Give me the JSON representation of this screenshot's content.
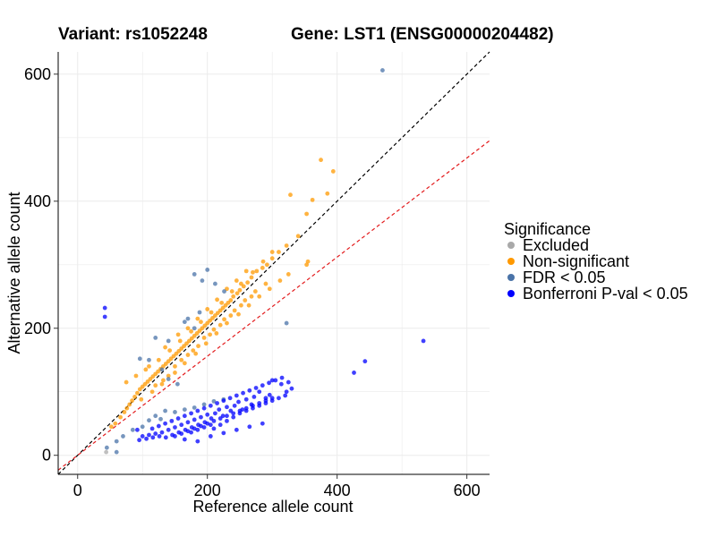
{
  "header": {
    "variant": "Variant: rs1052248",
    "gene": "Gene: LST1 (ENSG00000204482)"
  },
  "legend": {
    "title": "Significance",
    "items": [
      {
        "label": "Excluded",
        "color": "#a9a9a9"
      },
      {
        "label": "Non-significant",
        "color": "#ff9900"
      },
      {
        "label": "FDR < 0.05",
        "color": "#4a73a8"
      },
      {
        "label": "Bonferroni P-val < 0.05",
        "color": "#0000ff"
      }
    ]
  },
  "chart_data": {
    "type": "scatter",
    "title": "",
    "xlabel": "Reference allele count",
    "ylabel": "Alternative allele count",
    "xlim": [
      -30,
      635
    ],
    "ylim": [
      -30,
      635
    ],
    "xticks": [
      0,
      200,
      400,
      600
    ],
    "yticks": [
      0,
      200,
      400,
      600
    ],
    "grid": true,
    "legend_position": "right",
    "reference_lines": [
      {
        "name": "y = x",
        "slope": 1.0,
        "intercept": 0,
        "color": "#000000",
        "style": "dashed"
      },
      {
        "name": "fit",
        "slope": 0.78,
        "intercept": 0,
        "color": "#e31a1c",
        "style": "dashed"
      }
    ],
    "series": [
      {
        "name": "Excluded",
        "color": "#a9a9a9",
        "points": [
          [
            44,
            5
          ]
        ]
      },
      {
        "name": "Non-significant",
        "color": "#ff9900",
        "points": [
          [
            375,
            465
          ],
          [
            394,
            447
          ],
          [
            385,
            412
          ],
          [
            328,
            410
          ],
          [
            362,
            402
          ],
          [
            353,
            380
          ],
          [
            353,
            300
          ],
          [
            355,
            305
          ],
          [
            340,
            345
          ],
          [
            322,
            330
          ],
          [
            310,
            320
          ],
          [
            300,
            310
          ],
          [
            292,
            300
          ],
          [
            285,
            295
          ],
          [
            276,
            290
          ],
          [
            268,
            280
          ],
          [
            262,
            272
          ],
          [
            256,
            266
          ],
          [
            250,
            260
          ],
          [
            246,
            255
          ],
          [
            240,
            250
          ],
          [
            236,
            244
          ],
          [
            232,
            240
          ],
          [
            228,
            236
          ],
          [
            224,
            232
          ],
          [
            220,
            228
          ],
          [
            216,
            224
          ],
          [
            212,
            220
          ],
          [
            208,
            216
          ],
          [
            204,
            212
          ],
          [
            200,
            208
          ],
          [
            196,
            204
          ],
          [
            192,
            200
          ],
          [
            188,
            196
          ],
          [
            184,
            192
          ],
          [
            180,
            188
          ],
          [
            176,
            184
          ],
          [
            172,
            180
          ],
          [
            168,
            176
          ],
          [
            164,
            172
          ],
          [
            160,
            168
          ],
          [
            156,
            164
          ],
          [
            152,
            160
          ],
          [
            148,
            156
          ],
          [
            144,
            152
          ],
          [
            140,
            148
          ],
          [
            136,
            144
          ],
          [
            132,
            140
          ],
          [
            128,
            136
          ],
          [
            124,
            132
          ],
          [
            120,
            128
          ],
          [
            116,
            124
          ],
          [
            112,
            120
          ],
          [
            108,
            116
          ],
          [
            104,
            112
          ],
          [
            100,
            108
          ],
          [
            96,
            104
          ],
          [
            92,
            98
          ],
          [
            88,
            92
          ],
          [
            84,
            86
          ],
          [
            80,
            80
          ],
          [
            76,
            74
          ],
          [
            72,
            68
          ],
          [
            66,
            60
          ],
          [
            58,
            50
          ],
          [
            52,
            45
          ],
          [
            75,
            115
          ],
          [
            90,
            125
          ],
          [
            105,
            135
          ],
          [
            125,
            150
          ],
          [
            142,
            165
          ],
          [
            158,
            180
          ],
          [
            175,
            195
          ],
          [
            190,
            210
          ],
          [
            206,
            225
          ],
          [
            222,
            240
          ],
          [
            238,
            258
          ],
          [
            252,
            270
          ],
          [
            270,
            288
          ],
          [
            286,
            305
          ],
          [
            300,
            320
          ],
          [
            98,
            88
          ],
          [
            115,
            100
          ],
          [
            130,
            112
          ],
          [
            150,
            130
          ],
          [
            165,
            145
          ],
          [
            182,
            160
          ],
          [
            198,
            176
          ],
          [
            214,
            192
          ],
          [
            230,
            208
          ],
          [
            248,
            222
          ],
          [
            264,
            236
          ],
          [
            280,
            250
          ],
          [
            296,
            262
          ],
          [
            312,
            275
          ],
          [
            325,
            285
          ],
          [
            110,
            140
          ],
          [
            135,
            170
          ],
          [
            155,
            190
          ],
          [
            170,
            200
          ],
          [
            185,
            215
          ],
          [
            200,
            230
          ],
          [
            215,
            245
          ],
          [
            230,
            262
          ],
          [
            245,
            275
          ],
          [
            260,
            290
          ],
          [
            140,
            125
          ],
          [
            160,
            150
          ],
          [
            178,
            165
          ],
          [
            195,
            185
          ],
          [
            210,
            198
          ],
          [
            226,
            214
          ],
          [
            242,
            228
          ],
          [
            258,
            244
          ],
          [
            274,
            258
          ],
          [
            290,
            270
          ],
          [
            120,
            110
          ],
          [
            132,
            118
          ],
          [
            150,
            140
          ],
          [
            170,
            158
          ],
          [
            186,
            172
          ],
          [
            204,
            190
          ],
          [
            220,
            205
          ],
          [
            236,
            220
          ],
          [
            252,
            236
          ],
          [
            268,
            250
          ]
        ]
      },
      {
        "name": "FDR < 0.05",
        "color": "#4a73a8",
        "points": [
          [
            470,
            606
          ],
          [
            322,
            208
          ],
          [
            200,
            292
          ],
          [
            180,
            285
          ],
          [
            192,
            275
          ],
          [
            212,
            270
          ],
          [
            226,
            258
          ],
          [
            170,
            215
          ],
          [
            180,
            200
          ],
          [
            165,
            210
          ],
          [
            188,
            225
          ],
          [
            140,
            180
          ],
          [
            120,
            185
          ],
          [
            96,
            152
          ],
          [
            110,
            150
          ],
          [
            130,
            135
          ],
          [
            140,
            120
          ],
          [
            154,
            112
          ],
          [
            128,
            57
          ],
          [
            110,
            55
          ],
          [
            100,
            45
          ],
          [
            85,
            40
          ],
          [
            70,
            30
          ],
          [
            60,
            22
          ],
          [
            45,
            12
          ],
          [
            60,
            5
          ],
          [
            120,
            62
          ],
          [
            135,
            70
          ],
          [
            150,
            68
          ],
          [
            165,
            72
          ],
          [
            180,
            75
          ],
          [
            195,
            80
          ],
          [
            210,
            85
          ],
          [
            225,
            88
          ]
        ]
      },
      {
        "name": "Bonferroni P-val < 0.05",
        "color": "#0000ff",
        "points": [
          [
            42,
            232
          ],
          [
            42,
            218
          ],
          [
            533,
            180
          ],
          [
            443,
            148
          ],
          [
            426,
            130
          ],
          [
            330,
            105
          ],
          [
            322,
            100
          ],
          [
            314,
            112
          ],
          [
            300,
            118
          ],
          [
            296,
            95
          ],
          [
            290,
            90
          ],
          [
            280,
            100
          ],
          [
            272,
            92
          ],
          [
            268,
            80
          ],
          [
            260,
            88
          ],
          [
            254,
            72
          ],
          [
            248,
            84
          ],
          [
            242,
            78
          ],
          [
            236,
            70
          ],
          [
            230,
            76
          ],
          [
            224,
            62
          ],
          [
            218,
            72
          ],
          [
            212,
            66
          ],
          [
            206,
            58
          ],
          [
            200,
            64
          ],
          [
            196,
            52
          ],
          [
            190,
            60
          ],
          [
            186,
            48
          ],
          [
            180,
            56
          ],
          [
            176,
            44
          ],
          [
            170,
            52
          ],
          [
            166,
            40
          ],
          [
            160,
            48
          ],
          [
            156,
            36
          ],
          [
            150,
            44
          ],
          [
            146,
            32
          ],
          [
            140,
            40
          ],
          [
            136,
            28
          ],
          [
            130,
            36
          ],
          [
            126,
            30
          ],
          [
            120,
            34
          ],
          [
            116,
            28
          ],
          [
            110,
            32
          ],
          [
            106,
            26
          ],
          [
            100,
            30
          ],
          [
            95,
            24
          ],
          [
            92,
            40
          ],
          [
            115,
            42
          ],
          [
            125,
            46
          ],
          [
            135,
            50
          ],
          [
            145,
            54
          ],
          [
            155,
            58
          ],
          [
            165,
            62
          ],
          [
            175,
            66
          ],
          [
            185,
            70
          ],
          [
            195,
            74
          ],
          [
            205,
            78
          ],
          [
            215,
            82
          ],
          [
            225,
            86
          ],
          [
            235,
            90
          ],
          [
            245,
            94
          ],
          [
            255,
            98
          ],
          [
            265,
            102
          ],
          [
            275,
            106
          ],
          [
            285,
            110
          ],
          [
            295,
            114
          ],
          [
            305,
            118
          ],
          [
            315,
            122
          ],
          [
            325,
            115
          ],
          [
            210,
            42
          ],
          [
            220,
            48
          ],
          [
            230,
            54
          ],
          [
            240,
            60
          ],
          [
            250,
            66
          ],
          [
            260,
            70
          ],
          [
            270,
            74
          ],
          [
            280,
            78
          ],
          [
            290,
            82
          ],
          [
            300,
            86
          ],
          [
            310,
            90
          ],
          [
            320,
            94
          ],
          [
            175,
            36
          ],
          [
            185,
            40
          ],
          [
            195,
            44
          ],
          [
            205,
            48
          ],
          [
            150,
            30
          ],
          [
            160,
            34
          ],
          [
            170,
            38
          ],
          [
            180,
            42
          ],
          [
            190,
            46
          ],
          [
            200,
            50
          ],
          [
            210,
            54
          ],
          [
            220,
            58
          ],
          [
            230,
            62
          ],
          [
            240,
            66
          ],
          [
            250,
            70
          ],
          [
            260,
            74
          ],
          [
            270,
            78
          ],
          [
            280,
            82
          ],
          [
            290,
            86
          ],
          [
            300,
            90
          ],
          [
            165,
            25
          ],
          [
            185,
            22
          ],
          [
            205,
            30
          ],
          [
            225,
            35
          ],
          [
            245,
            40
          ],
          [
            265,
            45
          ],
          [
            285,
            50
          ]
        ]
      }
    ]
  }
}
